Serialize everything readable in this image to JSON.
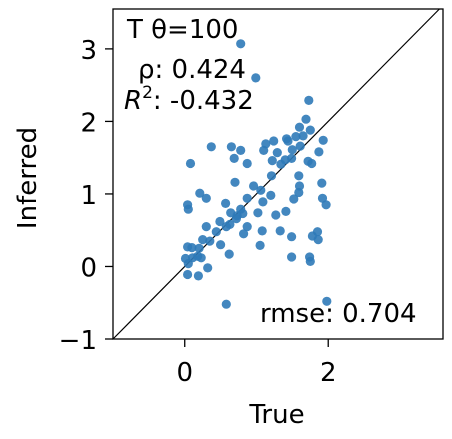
{
  "chart_data": {
    "type": "scatter",
    "xlabel": "True",
    "ylabel": "Inferred",
    "xlim": [
      -1,
      3.6
    ],
    "ylim": [
      -1,
      3.55
    ],
    "xticks": [
      0,
      2
    ],
    "yticks": [
      -1,
      0,
      1,
      2,
      3
    ],
    "xtick_labels": [
      "0",
      "2"
    ],
    "ytick_labels": [
      "−1",
      "0",
      "1",
      "2",
      "3"
    ],
    "point_color": "#2f7ab8",
    "identity_line": true,
    "annotations": {
      "title": "T θ=100",
      "rho": "ρ: 0.424",
      "r2_prefix": "R",
      "r2_sup": "2",
      "r2_value": ": -0.432",
      "rmse": "rmse: 0.704"
    },
    "points": [
      [
        0.78,
        3.07
      ],
      [
        0.99,
        2.6
      ],
      [
        1.73,
        2.29
      ],
      [
        1.42,
        1.76
      ],
      [
        1.55,
        1.79
      ],
      [
        1.65,
        1.8
      ],
      [
        1.75,
        1.88
      ],
      [
        1.6,
        1.92
      ],
      [
        1.69,
        2.03
      ],
      [
        1.61,
        1.66
      ],
      [
        1.1,
        1.6
      ],
      [
        1.13,
        1.69
      ],
      [
        1.24,
        1.73
      ],
      [
        1.44,
        1.73
      ],
      [
        1.5,
        1.61
      ],
      [
        1.93,
        1.74
      ],
      [
        1.87,
        1.58
      ],
      [
        0.65,
        1.65
      ],
      [
        0.37,
        1.65
      ],
      [
        0.78,
        1.6
      ],
      [
        1.29,
        1.57
      ],
      [
        1.4,
        1.47
      ],
      [
        1.49,
        1.49
      ],
      [
        1.22,
        1.46
      ],
      [
        1.34,
        1.41
      ],
      [
        1.72,
        1.45
      ],
      [
        1.77,
        1.42
      ],
      [
        0.69,
        1.49
      ],
      [
        0.87,
        1.42
      ],
      [
        0.08,
        1.42
      ],
      [
        1.21,
        1.25
      ],
      [
        1.59,
        1.25
      ],
      [
        1.6,
        1.11
      ],
      [
        1.06,
        1.05
      ],
      [
        0.7,
        1.16
      ],
      [
        0.96,
        1.11
      ],
      [
        1.91,
        1.15
      ],
      [
        1.59,
        1.02
      ],
      [
        1.92,
        0.94
      ],
      [
        0.21,
        1.01
      ],
      [
        0.3,
        0.94
      ],
      [
        1.2,
        0.98
      ],
      [
        0.87,
        0.94
      ],
      [
        1.52,
        0.93
      ],
      [
        1.09,
        0.89
      ],
      [
        0.04,
        0.85
      ],
      [
        0.05,
        0.79
      ],
      [
        1.41,
        0.76
      ],
      [
        1.97,
        0.85
      ],
      [
        0.78,
        0.79
      ],
      [
        1.02,
        0.74
      ],
      [
        0.57,
        0.87
      ],
      [
        0.64,
        0.74
      ],
      [
        0.81,
        0.73
      ],
      [
        1.27,
        0.71
      ],
      [
        0.73,
        0.7
      ],
      [
        0.72,
        0.66
      ],
      [
        0.63,
        0.58
      ],
      [
        0.49,
        0.62
      ],
      [
        0.58,
        0.55
      ],
      [
        0.87,
        0.55
      ],
      [
        0.3,
        0.55
      ],
      [
        1.08,
        0.49
      ],
      [
        0.44,
        0.48
      ],
      [
        1.33,
        0.49
      ],
      [
        1.49,
        0.41
      ],
      [
        0.82,
        0.45
      ],
      [
        1.85,
        0.48
      ],
      [
        1.78,
        0.42
      ],
      [
        1.86,
        0.37
      ],
      [
        0.25,
        0.37
      ],
      [
        0.35,
        0.35
      ],
      [
        0.5,
        0.3
      ],
      [
        0.04,
        0.27
      ],
      [
        0.1,
        0.26
      ],
      [
        0.2,
        0.25
      ],
      [
        1.05,
        0.29
      ],
      [
        0.62,
        0.17
      ],
      [
        0.01,
        0.11
      ],
      [
        0.11,
        0.12
      ],
      [
        0.18,
        0.14
      ],
      [
        0.23,
        0.12
      ],
      [
        1.49,
        0.13
      ],
      [
        1.74,
        0.13
      ],
      [
        1.75,
        0.07
      ],
      [
        0.05,
        0.04
      ],
      [
        0.32,
        -0.02
      ],
      [
        0.04,
        -0.11
      ],
      [
        0.19,
        -0.13
      ],
      [
        0.58,
        -0.52
      ],
      [
        1.98,
        -0.48
      ]
    ]
  }
}
